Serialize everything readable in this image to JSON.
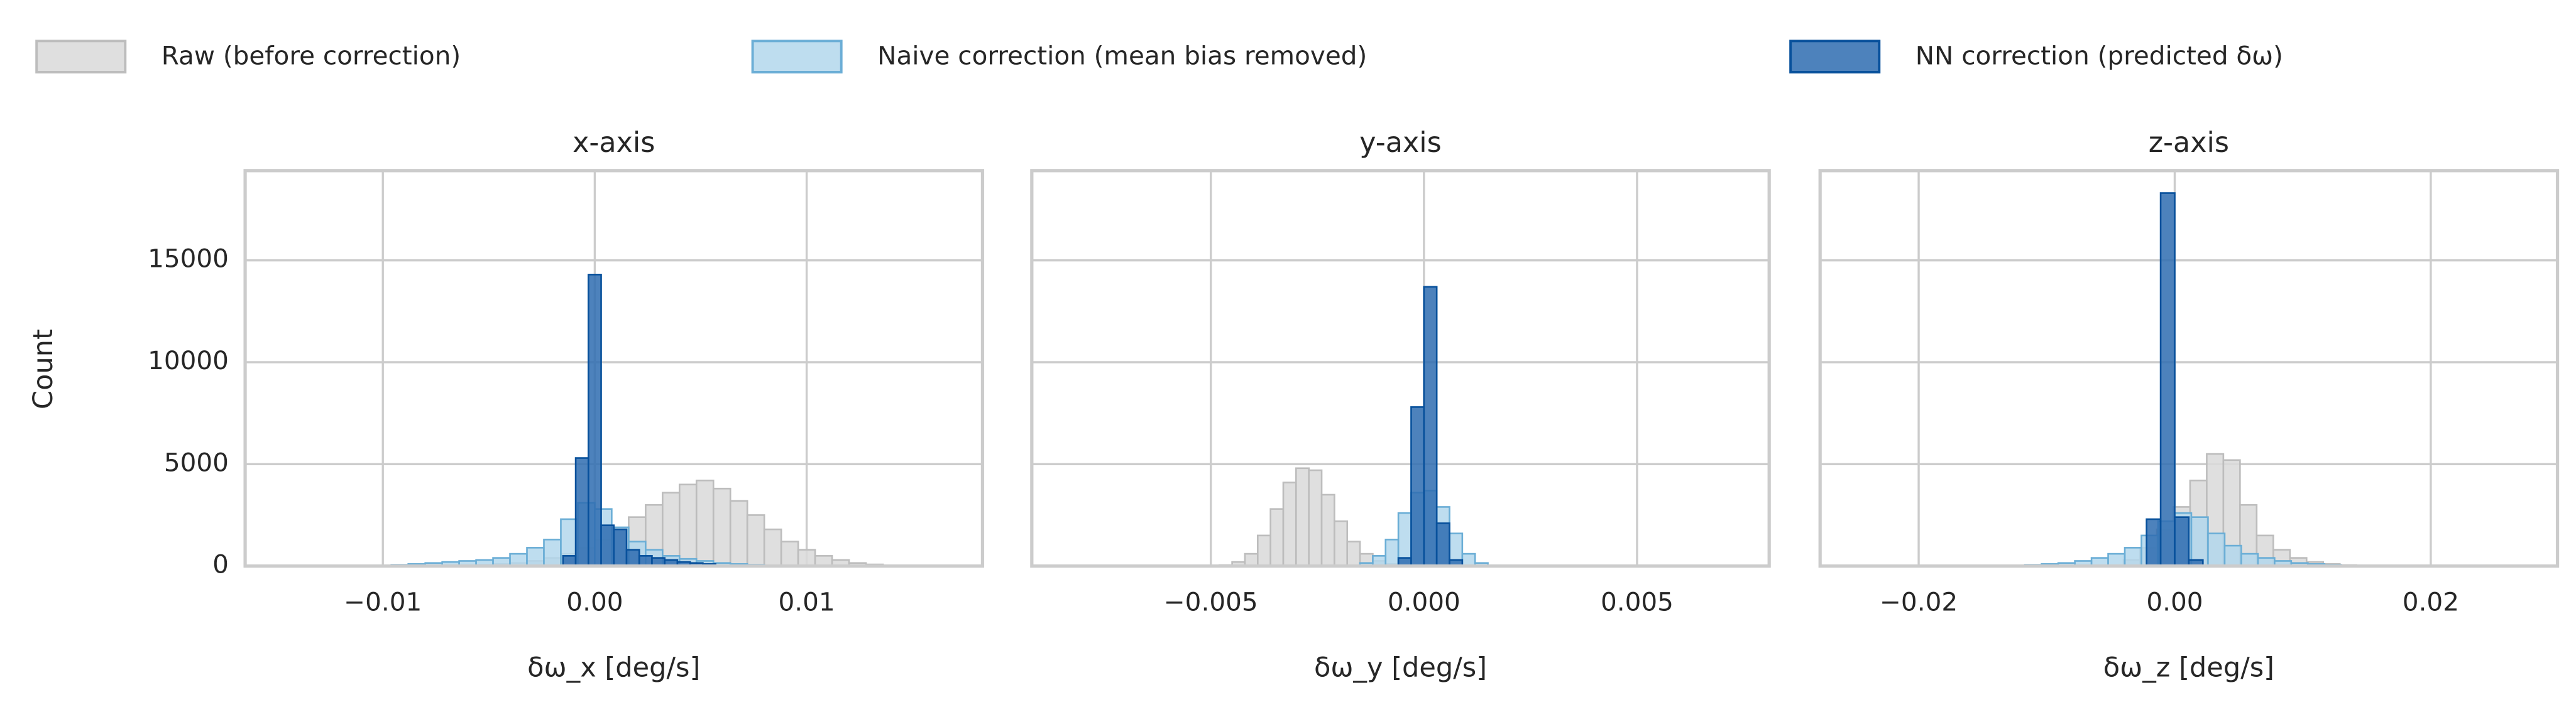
{
  "chart_data": [
    {
      "type": "histogram",
      "title": "x-axis",
      "xlabel": "δω_x [deg/s]",
      "ylabel": "Count",
      "xlim": [
        -0.0165,
        0.0183
      ],
      "xticks": [
        {
          "value": -0.01,
          "label": "−0.01"
        },
        {
          "value": 0,
          "label": "0.00"
        },
        {
          "value": 0.01,
          "label": "0.01"
        }
      ],
      "ylim": [
        0,
        19400
      ],
      "yticks": [
        0,
        5000,
        10000,
        15000
      ],
      "grid": true,
      "series": [
        {
          "name": "Raw (before correction)",
          "color": "#d9d9d9",
          "edgecolor": "#bdbdbd",
          "bins": [
            -0.0064,
            -0.0056,
            -0.0048,
            -0.004,
            -0.0032,
            -0.0024,
            -0.0016,
            -0.0008,
            0,
            0.0008,
            0.0016,
            0.0024,
            0.0032,
            0.004,
            0.0048,
            0.0056,
            0.0064,
            0.0072,
            0.008,
            0.0088,
            0.0096,
            0.0104,
            0.0112,
            0.012,
            0.0128,
            0.0136,
            0.0144
          ],
          "values": [
            30,
            60,
            100,
            150,
            250,
            400,
            600,
            900,
            1300,
            1800,
            2400,
            3000,
            3600,
            4000,
            4200,
            3800,
            3200,
            2500,
            1800,
            1200,
            800,
            500,
            300,
            150,
            80,
            40
          ]
        },
        {
          "name": "Naive correction (mean bias removed)",
          "color": "#b3d7ec",
          "edgecolor": "#6baed6",
          "bins": [
            -0.0112,
            -0.0104,
            -0.0096,
            -0.0088,
            -0.008,
            -0.0072,
            -0.0064,
            -0.0056,
            -0.0048,
            -0.004,
            -0.0032,
            -0.0024,
            -0.0016,
            -0.0008,
            0,
            0.0008,
            0.0016,
            0.0024,
            0.0032,
            0.004,
            0.0048,
            0.0056,
            0.0064,
            0.0072,
            0.008,
            0.0088,
            0.0096
          ],
          "values": [
            20,
            40,
            60,
            100,
            150,
            200,
            250,
            300,
            400,
            600,
            900,
            1300,
            2300,
            3100,
            2800,
            1900,
            1200,
            800,
            500,
            350,
            250,
            150,
            100,
            60,
            30,
            15
          ]
        },
        {
          "name": "NN correction (predicted δω)",
          "color": "#2e6cb0",
          "edgecolor": "#08519c",
          "bins": [
            -0.0015,
            -0.0009,
            -0.0003,
            0.0003,
            0.0009,
            0.0015,
            0.0021,
            0.0027,
            0.0033,
            0.0039,
            0.0045,
            0.0051,
            0.0057
          ],
          "values": [
            500,
            5300,
            14300,
            2000,
            1800,
            800,
            500,
            400,
            300,
            200,
            150,
            100
          ]
        }
      ]
    },
    {
      "type": "histogram",
      "title": "y-axis",
      "xlabel": "δω_y [deg/s]",
      "xlim": [
        -0.0092,
        0.0081
      ],
      "xticks": [
        {
          "value": -0.005,
          "label": "−0.005"
        },
        {
          "value": 0,
          "label": "0.000"
        },
        {
          "value": 0.005,
          "label": "0.005"
        }
      ],
      "ylim": [
        0,
        19400
      ],
      "yticks": [
        0,
        5000,
        10000,
        15000
      ],
      "grid": true,
      "series": [
        {
          "name": "Raw (before correction)",
          "color": "#d9d9d9",
          "edgecolor": "#bdbdbd",
          "bins": [
            -0.0048,
            -0.0045,
            -0.0042,
            -0.0039,
            -0.0036,
            -0.0033,
            -0.003,
            -0.0027,
            -0.0024,
            -0.0021,
            -0.0018,
            -0.0015,
            -0.0012,
            -0.0009,
            -0.0006,
            -0.0003
          ],
          "values": [
            50,
            200,
            600,
            1500,
            2800,
            4100,
            4800,
            4700,
            3500,
            2200,
            1200,
            600,
            250,
            100,
            40
          ]
        },
        {
          "name": "Naive correction (mean bias removed)",
          "color": "#b3d7ec",
          "edgecolor": "#6baed6",
          "bins": [
            -0.0018,
            -0.0015,
            -0.0012,
            -0.0009,
            -0.0006,
            -0.0003,
            0,
            0.0003,
            0.0006,
            0.0009,
            0.0012,
            0.0015,
            0.0018
          ],
          "values": [
            30,
            150,
            500,
            1300,
            2600,
            3600,
            3700,
            2900,
            1600,
            600,
            150,
            40
          ]
        },
        {
          "name": "NN correction (predicted δω)",
          "color": "#2e6cb0",
          "edgecolor": "#08519c",
          "bins": [
            -0.0006,
            -0.0003,
            0,
            0.0003,
            0.0006,
            0.0009
          ],
          "values": [
            400,
            7800,
            13700,
            2100,
            300
          ]
        }
      ]
    },
    {
      "type": "histogram",
      "title": "z-axis",
      "xlabel": "δω_z [deg/s]",
      "xlim": [
        -0.0277,
        0.0299
      ],
      "xticks": [
        {
          "value": -0.02,
          "label": "−0.02"
        },
        {
          "value": 0,
          "label": "0.00"
        },
        {
          "value": 0.02,
          "label": "0.02"
        }
      ],
      "ylim": [
        0,
        19400
      ],
      "yticks": [
        0,
        5000,
        10000,
        15000
      ],
      "grid": true,
      "series": [
        {
          "name": "Raw (before correction)",
          "color": "#d9d9d9",
          "edgecolor": "#bdbdbd",
          "bins": [
            -0.004,
            -0.0027,
            -0.0014,
            -0.0001,
            0.0012,
            0.0025,
            0.0038,
            0.0051,
            0.0064,
            0.0077,
            0.009,
            0.0103,
            0.0116,
            0.0129,
            0.0142
          ],
          "values": [
            300,
            900,
            1800,
            2900,
            4200,
            5500,
            5200,
            3000,
            1500,
            800,
            400,
            200,
            100,
            50
          ]
        },
        {
          "name": "Naive correction (mean bias removed)",
          "color": "#b3d7ec",
          "edgecolor": "#6baed6",
          "bins": [
            -0.013,
            -0.0117,
            -0.0104,
            -0.0091,
            -0.0078,
            -0.0065,
            -0.0052,
            -0.0039,
            -0.0026,
            -0.0013,
            0,
            0.0013,
            0.0026,
            0.0039,
            0.0052,
            0.0065,
            0.0078,
            0.0091,
            0.0104,
            0.0117,
            0.013,
            0.0143,
            0.0156
          ],
          "values": [
            30,
            60,
            100,
            150,
            250,
            400,
            600,
            900,
            1500,
            2200,
            2600,
            2400,
            1600,
            1000,
            600,
            400,
            250,
            150,
            100,
            60,
            30,
            15
          ]
        },
        {
          "name": "NN correction (predicted δω)",
          "color": "#2e6cb0",
          "edgecolor": "#08519c",
          "bins": [
            -0.0022,
            -0.0011,
            0,
            0.0011,
            0.0022
          ],
          "values": [
            2300,
            18300,
            2400,
            300
          ]
        }
      ]
    }
  ]
}
